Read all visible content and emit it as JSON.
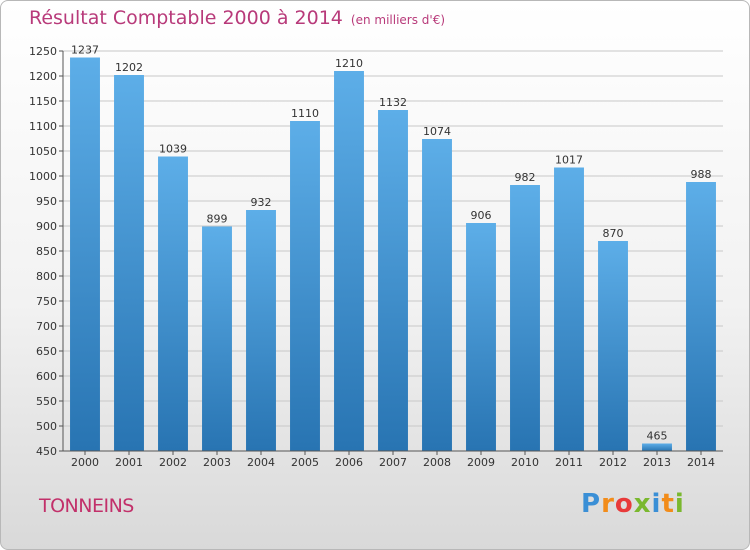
{
  "title": "Résultat Comptable 2000 à 2014",
  "unit": "(en milliers d'€)",
  "city": "TONNEINS",
  "logo": [
    "P",
    "r",
    "o",
    "x",
    "i",
    "t",
    "i"
  ],
  "logo_colors": [
    "#3a8fd6",
    "#f28c1a",
    "#e83a3a",
    "#7ab82e",
    "#3a8fd6",
    "#f28c1a",
    "#7ab82e"
  ],
  "colors": {
    "bar_top": "#5daee8",
    "bar_bottom": "#2874b2",
    "title": "#b83a7a"
  },
  "chart_data": {
    "type": "bar",
    "categories": [
      "2000",
      "2001",
      "2002",
      "2003",
      "2004",
      "2005",
      "2006",
      "2007",
      "2008",
      "2009",
      "2010",
      "2011",
      "2012",
      "2013",
      "2014"
    ],
    "values": [
      1237,
      1202,
      1039,
      899,
      932,
      1110,
      1210,
      1132,
      1074,
      906,
      982,
      1017,
      870,
      465,
      988
    ],
    "ylim": [
      450,
      1250
    ],
    "yticks": [
      450,
      500,
      550,
      600,
      650,
      700,
      750,
      800,
      850,
      900,
      950,
      1000,
      1050,
      1100,
      1150,
      1200,
      1250
    ],
    "title": "Résultat Comptable 2000 à 2014",
    "xlabel": "",
    "ylabel": "",
    "grid": true,
    "legend": "none"
  }
}
